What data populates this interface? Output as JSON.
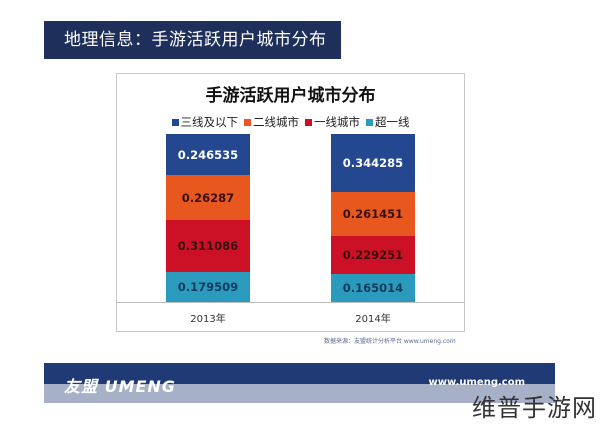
{
  "header": {
    "title": "地理信息：手游活跃用户城市分布"
  },
  "chart_data": {
    "type": "bar",
    "stacked": true,
    "title": "手游活跃用户城市分布",
    "categories": [
      "2013年",
      "2014年"
    ],
    "series": [
      {
        "name": "超一线",
        "color": "#2b9bbd",
        "values": [
          0.179509,
          0.165014
        ]
      },
      {
        "name": "一线城市",
        "color": "#cc1126",
        "values": [
          0.311086,
          0.229251
        ]
      },
      {
        "name": "二线城市",
        "color": "#e8571e",
        "values": [
          0.26287,
          0.261451
        ]
      },
      {
        "name": "三线及以下",
        "color": "#24488f",
        "values": [
          0.246535,
          0.344285
        ]
      }
    ],
    "legend_order": [
      "三线及以下",
      "二线城市",
      "一线城市",
      "超一线"
    ],
    "legend_position": "top",
    "xlabel": "",
    "ylabel": "",
    "ylim": [
      0,
      1
    ],
    "grid": false
  },
  "legend": [
    {
      "label": "三线及以下",
      "color": "#24488f"
    },
    {
      "label": "二线城市",
      "color": "#e8571e"
    },
    {
      "label": "一线城市",
      "color": "#cc1126"
    },
    {
      "label": "超一线",
      "color": "#2b9bbd"
    }
  ],
  "source": "数据来源：友盟统计分析平台 www.umeng.com",
  "footer": {
    "logo": "友盟 UMENG",
    "site": "www.umeng.com"
  },
  "watermark": "维普手游网"
}
